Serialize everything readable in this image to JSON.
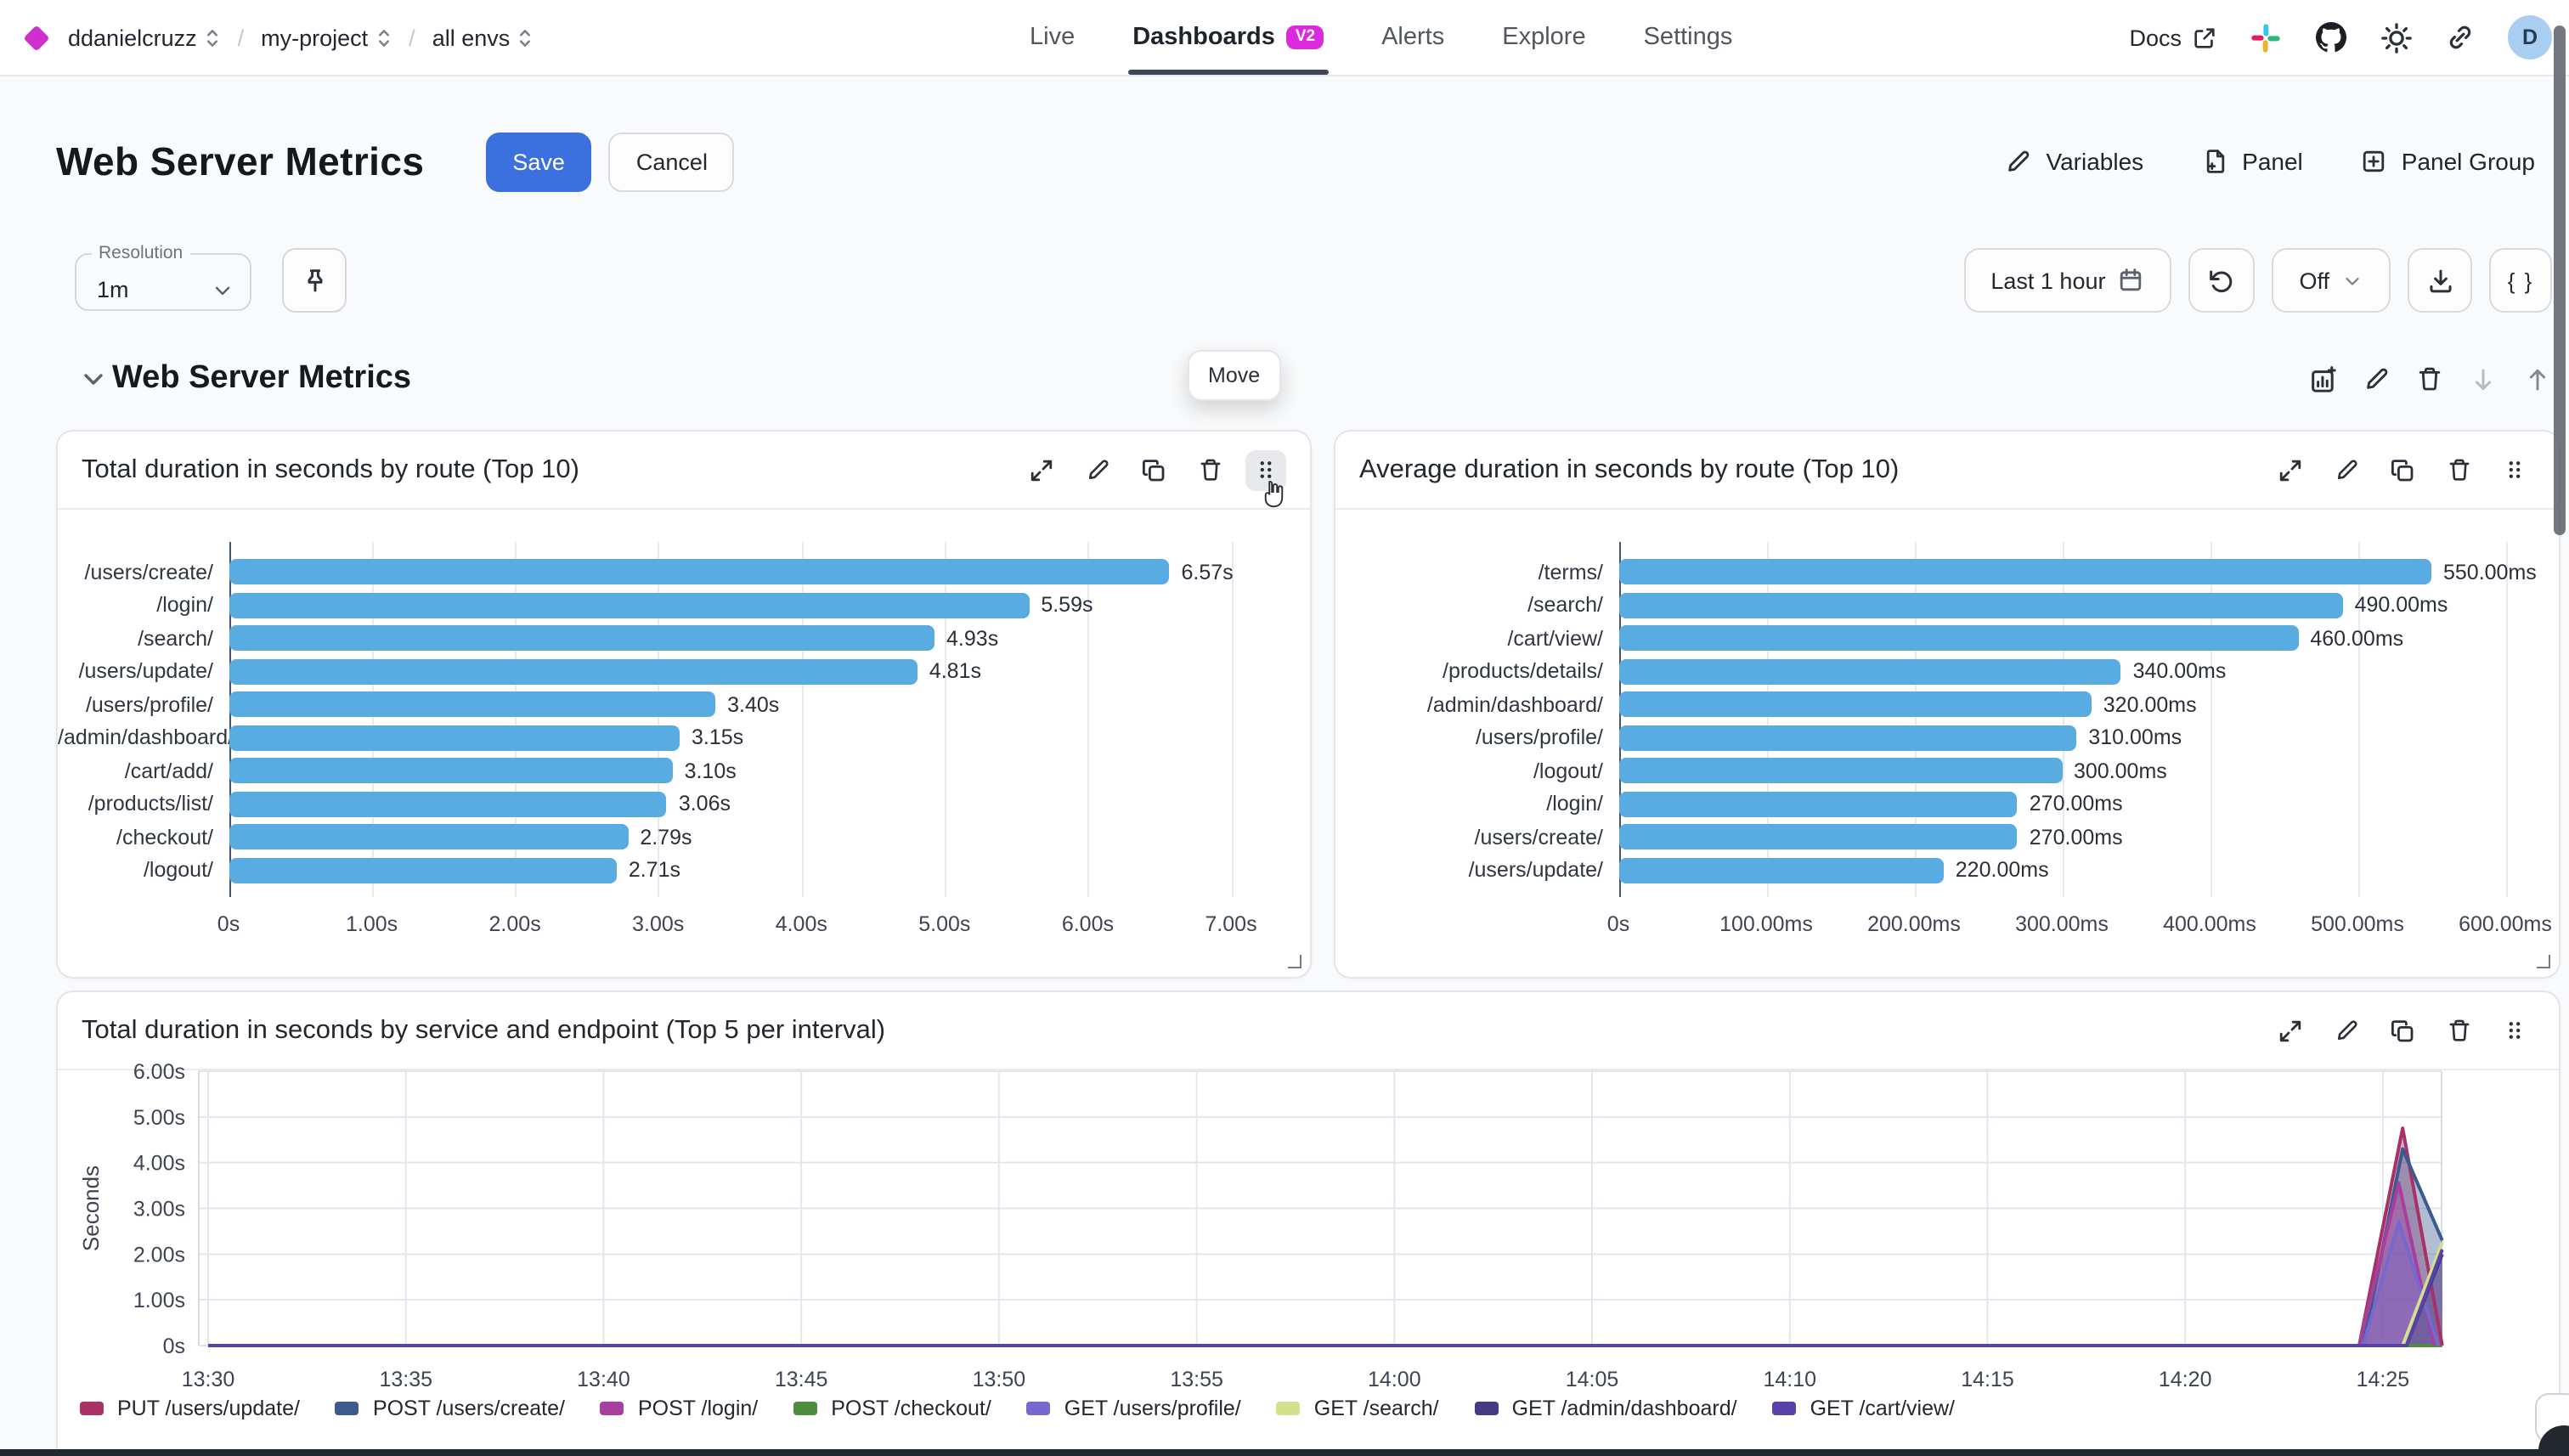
{
  "colors": {
    "accent_blue": "#3C70DF",
    "bar_blue": "#58ACE1",
    "badge_magenta": "#DB2ADB",
    "diamond_magenta": "#D02FD0",
    "tab_underline": "#3D4856",
    "avatar_bg": "#A8CEF1"
  },
  "nav": {
    "breadcrumbs": [
      "ddanielcruzz",
      "my-project",
      "all envs"
    ],
    "separator": "/",
    "tabs": [
      {
        "label": "Live",
        "active": false
      },
      {
        "label": "Dashboards",
        "active": true,
        "badge": "V2"
      },
      {
        "label": "Alerts",
        "active": false
      },
      {
        "label": "Explore",
        "active": false
      },
      {
        "label": "Settings",
        "active": false
      }
    ],
    "docs_label": "Docs",
    "avatar_initial": "D"
  },
  "header": {
    "title": "Web Server Metrics",
    "save_label": "Save",
    "cancel_label": "Cancel",
    "actions": [
      {
        "label": "Variables",
        "icon": "pencil-icon"
      },
      {
        "label": "Panel",
        "icon": "file-plus-icon"
      },
      {
        "label": "Panel Group",
        "icon": "plus-square-icon"
      }
    ]
  },
  "toolbar": {
    "resolution_label": "Resolution",
    "resolution_value": "1m",
    "time_range": "Last 1 hour",
    "refresh_interval": "Off",
    "braces_label": "{ }"
  },
  "group": {
    "title": "Web Server Metrics",
    "move_tooltip": "Move"
  },
  "chart_data": [
    {
      "type": "bar",
      "orientation": "horizontal",
      "title": "Total duration in seconds by route (Top 10)",
      "categories": [
        "/users/create/",
        "/login/",
        "/search/",
        "/users/update/",
        "/users/profile/",
        "/admin/dashboard/",
        "/cart/add/",
        "/products/list/",
        "/checkout/",
        "/logout/"
      ],
      "values": [
        6.57,
        5.59,
        4.93,
        4.81,
        3.4,
        3.15,
        3.1,
        3.06,
        2.79,
        2.71
      ],
      "value_labels": [
        "6.57s",
        "5.59s",
        "4.93s",
        "4.81s",
        "3.40s",
        "3.15s",
        "3.10s",
        "3.06s",
        "2.79s",
        "2.71s"
      ],
      "x_ticks": [
        "0s",
        "1.00s",
        "2.00s",
        "3.00s",
        "4.00s",
        "5.00s",
        "6.00s",
        "7.00s"
      ],
      "xlim": [
        0,
        7
      ],
      "bar_color": "#58ACE1",
      "grid": true
    },
    {
      "type": "bar",
      "orientation": "horizontal",
      "title": "Average duration in seconds by route (Top 10)",
      "categories": [
        "/terms/",
        "/search/",
        "/cart/view/",
        "/products/details/",
        "/admin/dashboard/",
        "/users/profile/",
        "/logout/",
        "/login/",
        "/users/create/",
        "/users/update/"
      ],
      "values": [
        550,
        490,
        460,
        340,
        320,
        310,
        300,
        270,
        270,
        220
      ],
      "value_labels": [
        "550.00ms",
        "490.00ms",
        "460.00ms",
        "340.00ms",
        "320.00ms",
        "310.00ms",
        "300.00ms",
        "270.00ms",
        "270.00ms",
        "220.00ms"
      ],
      "x_ticks": [
        "0s",
        "100.00ms",
        "200.00ms",
        "300.00ms",
        "400.00ms",
        "500.00ms",
        "600.00ms"
      ],
      "xlim": [
        0,
        600
      ],
      "bar_color": "#58ACE1",
      "grid": true
    },
    {
      "type": "area",
      "title": "Total duration in seconds by service and endpoint (Top 5 per interval)",
      "ylabel": "Seconds",
      "y_ticks": [
        "0s",
        "1.00s",
        "2.00s",
        "3.00s",
        "4.00s",
        "5.00s",
        "6.00s"
      ],
      "ylim": [
        0,
        6
      ],
      "x_ticks": [
        "13:30",
        "13:35",
        "13:40",
        "13:45",
        "13:50",
        "13:55",
        "14:00",
        "14:05",
        "14:10",
        "14:15",
        "14:20",
        "14:25"
      ],
      "x_domain_minutes": [
        0,
        56.5
      ],
      "grid": true,
      "legend_position": "bottom",
      "series": [
        {
          "name": "POST /checkout/",
          "color": "#4E8C3F",
          "points": [
            [
              0,
              0
            ],
            [
              56.5,
              0
            ]
          ]
        },
        {
          "name": "PUT /users/update/",
          "color": "#A83267",
          "points": [
            [
              0,
              0
            ],
            [
              54.4,
              0
            ],
            [
              55.5,
              4.75
            ],
            [
              56.5,
              0
            ]
          ]
        },
        {
          "name": "POST /users/create/",
          "color": "#3D5A8E",
          "points": [
            [
              0,
              0
            ],
            [
              54.5,
              0
            ],
            [
              55.5,
              4.3
            ],
            [
              56.5,
              2.3
            ]
          ]
        },
        {
          "name": "POST /login/",
          "color": "#A73F9F",
          "points": [
            [
              0,
              0
            ],
            [
              54.4,
              0
            ],
            [
              55.4,
              3.55
            ],
            [
              56.3,
              0
            ]
          ]
        },
        {
          "name": "GET /users/profile/",
          "color": "#7568CE",
          "points": [
            [
              0,
              0
            ],
            [
              54.5,
              0
            ],
            [
              55.4,
              2.7
            ],
            [
              56.4,
              0
            ]
          ]
        },
        {
          "name": "GET /search/",
          "color": "#D5E08C",
          "points": [
            [
              0,
              0
            ],
            [
              55.5,
              0
            ],
            [
              56.5,
              2.25
            ]
          ]
        },
        {
          "name": "GET /admin/dashboard/",
          "color": "#453A84",
          "points": [
            [
              0,
              0
            ],
            [
              55.6,
              0
            ],
            [
              56.5,
              2.0
            ]
          ]
        },
        {
          "name": "GET /cart/view/",
          "color": "#5A41A9",
          "points": [
            [
              0,
              0
            ],
            [
              55.6,
              0
            ],
            [
              56.5,
              2.1
            ]
          ]
        }
      ],
      "legend_order": [
        "PUT /users/update/",
        "POST /users/create/",
        "POST /login/",
        "POST /checkout/",
        "GET /users/profile/",
        "GET /search/",
        "GET /admin/dashboard/",
        "GET /cart/view/"
      ]
    }
  ]
}
